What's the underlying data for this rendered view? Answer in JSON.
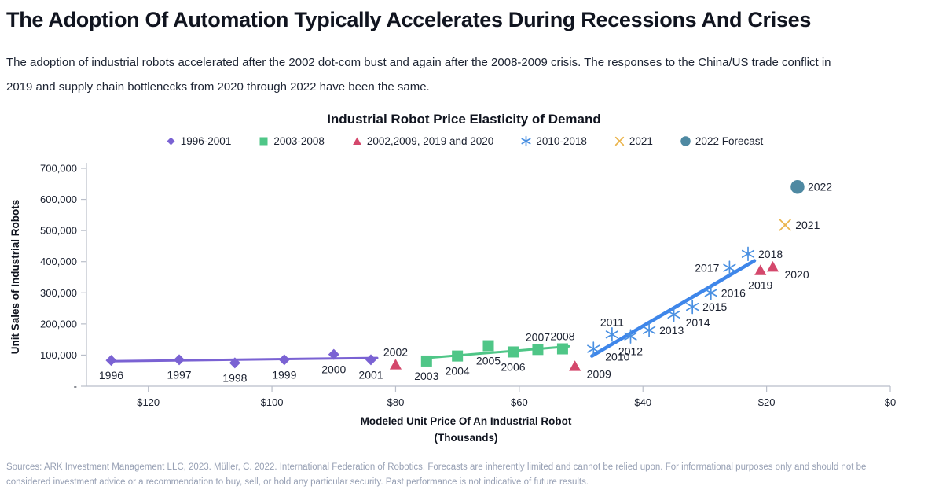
{
  "page": {
    "title": "The Adoption Of Automation Typically Accelerates During Recessions And Crises",
    "subtitle": "The adoption of industrial robots accelerated after the 2002 dot-com bust and again after the 2008-2009 crisis. The responses to the China/US trade conflict in 2019 and supply chain bottlenecks from 2020 through 2022 have been the same.",
    "footer": "Sources: ARK Investment Management LLC, 2023. Müller, C. 2022. International Federation of Robotics. Forecasts are inherently limited and cannot be relied upon. For informational purposes only and should not be considered investment advice or a recommendation to buy, sell, or hold any particular security. Past performance is not indicative of future results."
  },
  "chart_data": {
    "type": "scatter",
    "title": "Industrial Robot Price Elasticity of Demand",
    "xlabel": "Modeled Unit Price Of An Industrial Robot",
    "xlabel_sub": "(Thousands)",
    "ylabel": "Unit Sales of Industrial Robots",
    "x_axis": {
      "reversed": true,
      "domain_thousands": [
        130,
        0
      ],
      "tick_values": [
        120,
        100,
        80,
        60,
        40,
        20,
        0
      ],
      "tick_labels": [
        "$120",
        "$100",
        "$80",
        "$60",
        "$40",
        "$20",
        "$0"
      ]
    },
    "y_axis": {
      "domain": [
        0,
        700000
      ],
      "tick_values": [
        0,
        100000,
        200000,
        300000,
        400000,
        500000,
        600000,
        700000
      ],
      "tick_labels": [
        "-",
        "100,000",
        "200,000",
        "300,000",
        "400,000",
        "500,000",
        "600,000",
        "700,000"
      ]
    },
    "grid": false,
    "legend_position": "top-center",
    "series": [
      {
        "name": "1996-2001",
        "marker": "diamond",
        "color": "#7A62D3",
        "trendline": true,
        "line_width": 3,
        "points": [
          {
            "year": "1996",
            "price_thousands": 126,
            "unit_sales": 83000,
            "label_pos": "below"
          },
          {
            "year": "1997",
            "price_thousands": 115,
            "unit_sales": 85000,
            "label_pos": "below"
          },
          {
            "year": "1998",
            "price_thousands": 106,
            "unit_sales": 75000,
            "label_pos": "below"
          },
          {
            "year": "1999",
            "price_thousands": 98,
            "unit_sales": 85000,
            "label_pos": "below"
          },
          {
            "year": "2000",
            "price_thousands": 90,
            "unit_sales": 102000,
            "label_pos": "below"
          },
          {
            "year": "2001",
            "price_thousands": 84,
            "unit_sales": 85000,
            "label_pos": "below"
          }
        ]
      },
      {
        "name": "2003-2008",
        "marker": "square",
        "color": "#4FC687",
        "trendline": true,
        "line_width": 3,
        "points": [
          {
            "year": "2003",
            "price_thousands": 75,
            "unit_sales": 81000,
            "label_pos": "below"
          },
          {
            "year": "2004",
            "price_thousands": 70,
            "unit_sales": 97000,
            "label_pos": "below"
          },
          {
            "year": "2005",
            "price_thousands": 65,
            "unit_sales": 130000,
            "label_pos": "below"
          },
          {
            "year": "2006",
            "price_thousands": 61,
            "unit_sales": 110000,
            "label_pos": "below"
          },
          {
            "year": "2007",
            "price_thousands": 57,
            "unit_sales": 118000,
            "label_pos": "above"
          },
          {
            "year": "2008",
            "price_thousands": 53,
            "unit_sales": 120000,
            "label_pos": "above"
          }
        ]
      },
      {
        "name": "2002,2009, 2019 and 2020",
        "marker": "triangle",
        "color": "#D4486C",
        "trendline": false,
        "points": [
          {
            "year": "2002",
            "price_thousands": 80,
            "unit_sales": 70000,
            "label_pos": "above"
          },
          {
            "year": "2009",
            "price_thousands": 51,
            "unit_sales": 65000,
            "label_pos": "below-right"
          },
          {
            "year": "2019",
            "price_thousands": 21,
            "unit_sales": 373000,
            "label_pos": "below"
          },
          {
            "year": "2020",
            "price_thousands": 19,
            "unit_sales": 384000,
            "label_pos": "below-right"
          }
        ]
      },
      {
        "name": "2010-2018",
        "marker": "asterisk",
        "color": "#4A90E2",
        "trendline": true,
        "line_width": 4.5,
        "trend_color": "#3E86EA",
        "points": [
          {
            "year": "2010",
            "price_thousands": 48,
            "unit_sales": 120000,
            "label_pos": "below-right"
          },
          {
            "year": "2011",
            "price_thousands": 45,
            "unit_sales": 166000,
            "label_pos": "above"
          },
          {
            "year": "2012",
            "price_thousands": 42,
            "unit_sales": 160000,
            "label_pos": "below"
          },
          {
            "year": "2013",
            "price_thousands": 39,
            "unit_sales": 180000,
            "label_pos": "right"
          },
          {
            "year": "2014",
            "price_thousands": 35,
            "unit_sales": 230000,
            "label_pos": "below-right"
          },
          {
            "year": "2015",
            "price_thousands": 32,
            "unit_sales": 255000,
            "label_pos": "right"
          },
          {
            "year": "2016",
            "price_thousands": 29,
            "unit_sales": 300000,
            "label_pos": "right"
          },
          {
            "year": "2017",
            "price_thousands": 26,
            "unit_sales": 380000,
            "label_pos": "left"
          },
          {
            "year": "2018",
            "price_thousands": 23,
            "unit_sales": 425000,
            "label_pos": "right"
          }
        ]
      },
      {
        "name": "2021",
        "marker": "x",
        "color": "#EBB54E",
        "trendline": false,
        "points": [
          {
            "year": "2021",
            "price_thousands": 17,
            "unit_sales": 518000,
            "label_pos": "right"
          }
        ]
      },
      {
        "name": "2022 Forecast",
        "marker": "circle",
        "color": "#4E89A2",
        "trendline": false,
        "points": [
          {
            "year": "2022",
            "price_thousands": 15,
            "unit_sales": 640000,
            "label_pos": "right"
          }
        ]
      }
    ]
  }
}
